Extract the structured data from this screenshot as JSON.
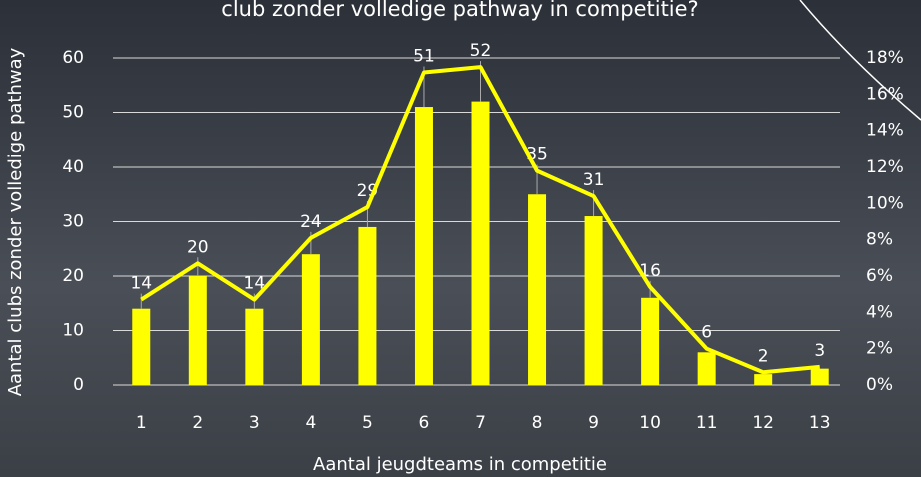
{
  "chart_data": {
    "type": "bar",
    "title": "club zonder volledige pathway in competitie?",
    "x_label": "Aantal jeugdteams in competitie",
    "y_label": "Aantal clubs zonder volledige pathway",
    "categories": [
      "1",
      "2",
      "3",
      "4",
      "5",
      "6",
      "7",
      "8",
      "9",
      "10",
      "11",
      "12",
      "13"
    ],
    "series": [
      {
        "type": "bar",
        "color": "#ffff00",
        "values": [
          14,
          20,
          14,
          24,
          29,
          51,
          52,
          35,
          31,
          16,
          6,
          2,
          3
        ]
      },
      {
        "type": "line",
        "color": "#ffff00",
        "axis": "y2",
        "values": [
          4.7,
          6.7,
          4.7,
          8.1,
          9.8,
          17.2,
          17.5,
          11.8,
          10.4,
          5.4,
          2.0,
          0.7,
          1.0
        ]
      }
    ],
    "ylim": [
      0,
      60
    ],
    "yticks": [
      0,
      10,
      20,
      30,
      40,
      50,
      60
    ],
    "y2lim": [
      0,
      18
    ],
    "y2ticks": [
      {
        "value": 0,
        "label": "0%"
      },
      {
        "value": 2,
        "label": "2%"
      },
      {
        "value": 4,
        "label": "4%"
      },
      {
        "value": 6,
        "label": "6%"
      },
      {
        "value": 8,
        "label": "8%"
      },
      {
        "value": 10,
        "label": "10%"
      },
      {
        "value": 12,
        "label": "12%"
      },
      {
        "value": 14,
        "label": "14%"
      },
      {
        "value": 16,
        "label": "16%"
      },
      {
        "value": 18,
        "label": "18%"
      }
    ],
    "grid": true
  }
}
